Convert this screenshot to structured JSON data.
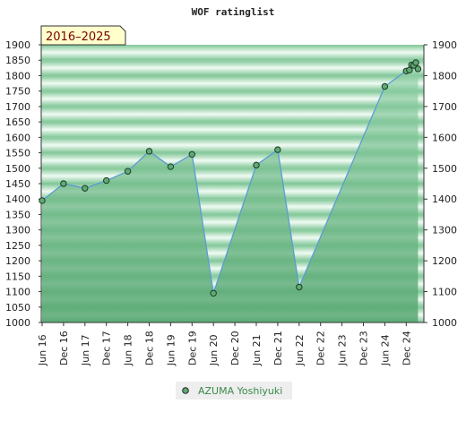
{
  "title": "WOF ratinglist",
  "period_label": "2016–2025",
  "colors": {
    "line": "#5b9bd5",
    "marker_fill": "#5faa72",
    "band_dark": "#7fc696",
    "band_light": "#f0fbf3",
    "area_top": "#8fd0a6",
    "area_bottom": "#55a670",
    "label_bg": "#ffffcc"
  },
  "chart_data": {
    "type": "area",
    "title": "WOF ratinglist",
    "xlabel": "",
    "ylabel": "",
    "ylim": [
      1000,
      1900
    ],
    "y_ticks": [
      1000,
      1050,
      1100,
      1150,
      1200,
      1250,
      1300,
      1350,
      1400,
      1450,
      1500,
      1550,
      1600,
      1650,
      1700,
      1750,
      1800,
      1850,
      1900
    ],
    "y_ticks_right": [
      1000,
      1100,
      1200,
      1300,
      1400,
      1500,
      1600,
      1700,
      1800,
      1900
    ],
    "x_ticks": [
      "Jun 16",
      "Dec 16",
      "Jun 17",
      "Dec 17",
      "Jun 18",
      "Dec 18",
      "Jun 19",
      "Dec 19",
      "Jun 20",
      "Dec 20",
      "Jun 21",
      "Dec 21",
      "Jun 22",
      "Dec 22",
      "Jun 23",
      "Dec 23",
      "Jun 24",
      "Dec 24"
    ],
    "x_range": [
      -0.05,
      17.55
    ],
    "grid": true,
    "legend_position": "bottom-center",
    "series": [
      {
        "name": "AZUMA Yoshiyuki",
        "points": [
          {
            "x": 0,
            "y": 1395
          },
          {
            "x": 1,
            "y": 1450
          },
          {
            "x": 2,
            "y": 1435
          },
          {
            "x": 3,
            "y": 1460
          },
          {
            "x": 4,
            "y": 1490
          },
          {
            "x": 5,
            "y": 1555
          },
          {
            "x": 6,
            "y": 1505
          },
          {
            "x": 7,
            "y": 1545
          },
          {
            "x": 8,
            "y": 1095
          },
          {
            "x": 10,
            "y": 1510
          },
          {
            "x": 11,
            "y": 1560
          },
          {
            "x": 12,
            "y": 1115
          },
          {
            "x": 16,
            "y": 1765
          },
          {
            "x": 17,
            "y": 1815
          },
          {
            "x": 17.15,
            "y": 1818
          },
          {
            "x": 17.25,
            "y": 1835
          },
          {
            "x": 17.35,
            "y": 1833
          },
          {
            "x": 17.45,
            "y": 1842
          },
          {
            "x": 17.55,
            "y": 1822
          }
        ]
      }
    ]
  }
}
